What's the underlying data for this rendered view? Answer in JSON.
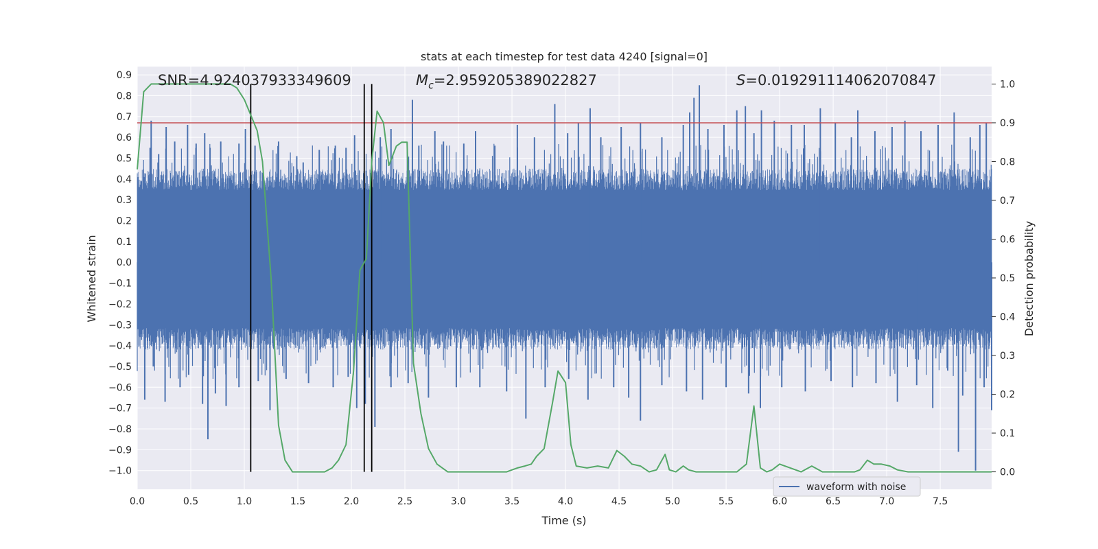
{
  "chart_data": {
    "type": "line",
    "title": "stats at each timestep for test data 4240 [signal=0]",
    "xlabel": "Time (s)",
    "ylabel": "Whitened strain",
    "ylabel_right": "Detection probability",
    "xlim": [
      0.0,
      7.98
    ],
    "ylim": [
      -1.09,
      0.94
    ],
    "ylim_right": [
      -0.045,
      1.045
    ],
    "x_ticks": [
      0.0,
      0.5,
      1.0,
      1.5,
      2.0,
      2.5,
      3.0,
      3.5,
      4.0,
      4.5,
      5.0,
      5.5,
      6.0,
      6.5,
      7.0,
      7.5
    ],
    "x_tick_labels": [
      "0.0",
      "0.5",
      "1.0",
      "1.5",
      "2.0",
      "2.5",
      "3.0",
      "3.5",
      "4.0",
      "4.5",
      "5.0",
      "5.5",
      "6.0",
      "6.5",
      "7.0",
      "7.5"
    ],
    "y_ticks": [
      0.9,
      0.8,
      0.7,
      0.6,
      0.5,
      0.4,
      0.3,
      0.2,
      0.1,
      0.0,
      -0.1,
      -0.2,
      -0.3,
      -0.4,
      -0.5,
      -0.6,
      -0.7,
      -0.8,
      -0.9,
      -1.0
    ],
    "y_tick_labels": [
      "0.9",
      "0.8",
      "0.7",
      "0.6",
      "0.5",
      "0.4",
      "0.3",
      "0.2",
      "0.1",
      "0.0",
      "−0.1",
      "−0.2",
      "−0.3",
      "−0.4",
      "−0.5",
      "−0.6",
      "−0.7",
      "−0.8",
      "−0.9",
      "−1.0"
    ],
    "y_ticks_right": [
      1.0,
      0.9,
      0.8,
      0.7,
      0.6,
      0.5,
      0.4,
      0.3,
      0.2,
      0.1,
      0.0
    ],
    "y_tick_labels_right": [
      "1.0",
      "0.9",
      "0.8",
      "0.7",
      "0.6",
      "0.5",
      "0.4",
      "0.3",
      "0.2",
      "0.1",
      "0.0"
    ],
    "grid": true,
    "annotations": {
      "snr": "SNR=4.924037933349609",
      "mc_symbol": "M",
      "mc_sub": "c",
      "mc_value": "=2.959205389022827",
      "s_symbol": "S",
      "s_value": "=0.019291114062070847"
    },
    "threshold_right": 0.9,
    "threshold_color": "#c44e52",
    "vertical_lines_x": [
      1.06,
      2.12,
      2.19
    ],
    "waveform": {
      "name": "waveform with noise",
      "color": "#4c72b0",
      "core_envelope": [
        -0.26,
        0.29
      ],
      "body_envelope": [
        -0.42,
        0.45
      ],
      "spikes": [
        {
          "x": 0.06,
          "y": 0.41
        },
        {
          "x": 0.12,
          "y": 0.55
        },
        {
          "x": 0.13,
          "y": 0.68
        },
        {
          "x": 0.2,
          "y": 0.52
        },
        {
          "x": 0.27,
          "y": 0.65
        },
        {
          "x": 0.35,
          "y": 0.58
        },
        {
          "x": 0.47,
          "y": 0.66
        },
        {
          "x": 0.55,
          "y": 0.57
        },
        {
          "x": 0.63,
          "y": 0.62
        },
        {
          "x": 0.68,
          "y": 0.55
        },
        {
          "x": 0.78,
          "y": 0.58
        },
        {
          "x": 0.95,
          "y": 0.57
        },
        {
          "x": 1.01,
          "y": 0.64
        },
        {
          "x": 1.1,
          "y": 0.56
        },
        {
          "x": 1.32,
          "y": 0.58
        },
        {
          "x": 1.49,
          "y": 0.51
        },
        {
          "x": 1.55,
          "y": 0.48
        },
        {
          "x": 1.7,
          "y": 0.54
        },
        {
          "x": 1.85,
          "y": 0.56
        },
        {
          "x": 1.95,
          "y": 0.55
        },
        {
          "x": 2.03,
          "y": 0.61
        },
        {
          "x": 2.27,
          "y": 0.6
        },
        {
          "x": 2.37,
          "y": 0.64
        },
        {
          "x": 2.57,
          "y": 0.78
        },
        {
          "x": 2.63,
          "y": 0.56
        },
        {
          "x": 2.78,
          "y": 0.63
        },
        {
          "x": 2.86,
          "y": 0.58
        },
        {
          "x": 3.05,
          "y": 0.57
        },
        {
          "x": 3.16,
          "y": 0.63
        },
        {
          "x": 3.34,
          "y": 0.56
        },
        {
          "x": 3.55,
          "y": 0.66
        },
        {
          "x": 3.71,
          "y": 0.6
        },
        {
          "x": 3.9,
          "y": 0.76
        },
        {
          "x": 4.02,
          "y": 0.62
        },
        {
          "x": 4.12,
          "y": 0.67
        },
        {
          "x": 4.23,
          "y": 0.74
        },
        {
          "x": 4.33,
          "y": 0.6
        },
        {
          "x": 4.52,
          "y": 0.65
        },
        {
          "x": 4.7,
          "y": 0.67
        },
        {
          "x": 4.9,
          "y": 0.6
        },
        {
          "x": 5.1,
          "y": 0.66
        },
        {
          "x": 5.16,
          "y": 0.72
        },
        {
          "x": 5.2,
          "y": 0.79
        },
        {
          "x": 5.25,
          "y": 0.85
        },
        {
          "x": 5.33,
          "y": 0.64
        },
        {
          "x": 5.48,
          "y": 0.66
        },
        {
          "x": 5.6,
          "y": 0.73
        },
        {
          "x": 5.68,
          "y": 0.75
        },
        {
          "x": 5.76,
          "y": 0.62
        },
        {
          "x": 5.83,
          "y": 0.73
        },
        {
          "x": 5.95,
          "y": 0.68
        },
        {
          "x": 6.11,
          "y": 0.66
        },
        {
          "x": 6.23,
          "y": 0.66
        },
        {
          "x": 6.38,
          "y": 0.74
        },
        {
          "x": 6.52,
          "y": 0.67
        },
        {
          "x": 6.67,
          "y": 0.6
        },
        {
          "x": 6.73,
          "y": 0.73
        },
        {
          "x": 6.89,
          "y": 0.63
        },
        {
          "x": 7.05,
          "y": 0.65
        },
        {
          "x": 7.17,
          "y": 0.68
        },
        {
          "x": 7.32,
          "y": 0.63
        },
        {
          "x": 7.48,
          "y": 0.66
        },
        {
          "x": 7.63,
          "y": 0.72
        },
        {
          "x": 7.78,
          "y": 0.6
        },
        {
          "x": 7.87,
          "y": 0.66
        },
        {
          "x": 7.93,
          "y": 0.67
        },
        {
          "x": 0.07,
          "y": -0.66
        },
        {
          "x": 0.15,
          "y": -0.5
        },
        {
          "x": 0.26,
          "y": -0.67
        },
        {
          "x": 0.4,
          "y": -0.6
        },
        {
          "x": 0.48,
          "y": -0.54
        },
        {
          "x": 0.61,
          "y": -0.68
        },
        {
          "x": 0.66,
          "y": -0.85
        },
        {
          "x": 0.73,
          "y": -0.63
        },
        {
          "x": 0.83,
          "y": -0.69
        },
        {
          "x": 0.95,
          "y": -0.6
        },
        {
          "x": 1.13,
          "y": -0.57
        },
        {
          "x": 1.24,
          "y": -0.71
        },
        {
          "x": 1.39,
          "y": -0.56
        },
        {
          "x": 1.6,
          "y": -0.58
        },
        {
          "x": 1.83,
          "y": -0.6
        },
        {
          "x": 1.97,
          "y": -0.55
        },
        {
          "x": 2.05,
          "y": -0.7
        },
        {
          "x": 2.13,
          "y": -0.68
        },
        {
          "x": 2.22,
          "y": -0.79
        },
        {
          "x": 2.37,
          "y": -0.6
        },
        {
          "x": 2.53,
          "y": -0.58
        },
        {
          "x": 2.72,
          "y": -0.65
        },
        {
          "x": 2.98,
          "y": -0.6
        },
        {
          "x": 3.2,
          "y": -0.6
        },
        {
          "x": 3.45,
          "y": -0.62
        },
        {
          "x": 3.63,
          "y": -0.75
        },
        {
          "x": 3.81,
          "y": -0.6
        },
        {
          "x": 4.03,
          "y": -0.56
        },
        {
          "x": 4.21,
          "y": -0.66
        },
        {
          "x": 4.45,
          "y": -0.6
        },
        {
          "x": 4.59,
          "y": -0.65
        },
        {
          "x": 4.7,
          "y": -0.76
        },
        {
          "x": 4.9,
          "y": -0.59
        },
        {
          "x": 5.13,
          "y": -0.62
        },
        {
          "x": 5.28,
          "y": -0.66
        },
        {
          "x": 5.5,
          "y": -0.6
        },
        {
          "x": 5.71,
          "y": -0.63
        },
        {
          "x": 5.82,
          "y": -0.7
        },
        {
          "x": 6.02,
          "y": -0.6
        },
        {
          "x": 6.24,
          "y": -0.62
        },
        {
          "x": 6.48,
          "y": -0.57
        },
        {
          "x": 6.68,
          "y": -0.6
        },
        {
          "x": 6.9,
          "y": -0.58
        },
        {
          "x": 7.1,
          "y": -0.67
        },
        {
          "x": 7.28,
          "y": -0.59
        },
        {
          "x": 7.43,
          "y": -0.7
        },
        {
          "x": 7.57,
          "y": -0.52
        },
        {
          "x": 7.67,
          "y": -0.91
        },
        {
          "x": 7.71,
          "y": -0.64
        },
        {
          "x": 7.83,
          "y": -1.0
        },
        {
          "x": 7.91,
          "y": -0.6
        },
        {
          "x": 7.98,
          "y": -0.71
        }
      ]
    },
    "probability": {
      "color": "#55a868",
      "x": [
        0.0,
        0.06,
        0.13,
        0.2,
        0.3,
        0.4,
        0.5,
        0.6,
        0.7,
        0.8,
        0.87,
        0.93,
        1.0,
        1.06,
        1.12,
        1.17,
        1.25,
        1.32,
        1.38,
        1.45,
        1.55,
        1.65,
        1.75,
        1.82,
        1.88,
        1.95,
        2.02,
        2.08,
        2.14,
        2.19,
        2.24,
        2.3,
        2.35,
        2.42,
        2.47,
        2.52,
        2.58,
        2.65,
        2.72,
        2.8,
        2.9,
        3.0,
        3.2,
        3.4,
        3.45,
        3.5,
        3.55,
        3.62,
        3.68,
        3.73,
        3.8,
        3.88,
        3.93,
        4.0,
        4.05,
        4.1,
        4.2,
        4.3,
        4.4,
        4.48,
        4.55,
        4.62,
        4.7,
        4.78,
        4.85,
        4.93,
        4.97,
        5.03,
        5.1,
        5.15,
        5.22,
        5.3,
        5.4,
        5.5,
        5.6,
        5.69,
        5.76,
        5.82,
        5.88,
        5.93,
        6.0,
        6.1,
        6.2,
        6.3,
        6.4,
        6.5,
        6.6,
        6.7,
        6.75,
        6.82,
        6.88,
        6.95,
        7.03,
        7.1,
        7.2,
        7.3,
        7.5,
        7.7,
        7.98
      ],
      "y": [
        0.78,
        0.98,
        1.0,
        1.0,
        1.0,
        1.0,
        1.0,
        1.0,
        1.0,
        1.0,
        1.0,
        0.99,
        0.96,
        0.92,
        0.88,
        0.8,
        0.5,
        0.12,
        0.03,
        0.0,
        0.0,
        0.0,
        0.0,
        0.01,
        0.03,
        0.07,
        0.26,
        0.52,
        0.55,
        0.8,
        0.93,
        0.9,
        0.79,
        0.84,
        0.85,
        0.85,
        0.28,
        0.15,
        0.06,
        0.02,
        0.0,
        0.0,
        0.0,
        0.0,
        0.0,
        0.005,
        0.01,
        0.015,
        0.02,
        0.04,
        0.06,
        0.18,
        0.26,
        0.23,
        0.07,
        0.015,
        0.01,
        0.015,
        0.01,
        0.055,
        0.04,
        0.02,
        0.015,
        0.0,
        0.005,
        0.045,
        0.005,
        0.0,
        0.015,
        0.005,
        0.0,
        0.0,
        0.0,
        0.0,
        0.0,
        0.02,
        0.17,
        0.01,
        0.0,
        0.005,
        0.02,
        0.01,
        0.0,
        0.015,
        0.0,
        0.0,
        0.0,
        0.0,
        0.005,
        0.03,
        0.02,
        0.02,
        0.015,
        0.005,
        0.0,
        0.0,
        0.0,
        0.0,
        0.0
      ]
    },
    "legend": {
      "label": "waveform with noise",
      "position": "lower-right"
    }
  }
}
